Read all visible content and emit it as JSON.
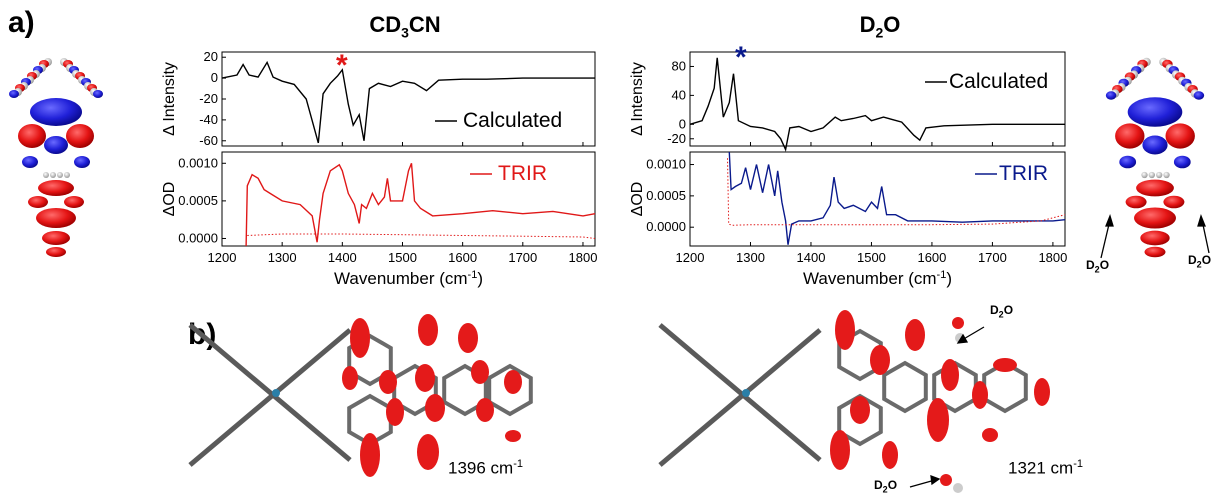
{
  "panel_a_label": "a)",
  "panel_b_label": "b)",
  "left_title_main": "CD",
  "left_title_sub": "3",
  "left_title_tail": "CN",
  "right_title_main": "D",
  "right_title_sub": "2",
  "right_title_tail": "O",
  "left_peak_marker": "*",
  "right_peak_marker": "*",
  "water_label_main": "D",
  "water_label_sub": "2",
  "water_label_tail": "O",
  "freq_left": "1396 cm",
  "freq_left_sup": "-1",
  "freq_right": "1321 cm",
  "freq_right_sup": "-1",
  "colors": {
    "red": "#e01818",
    "navy": "#0a1a8c",
    "black": "#000000"
  },
  "chart_data": [
    {
      "type": "line",
      "panel": "CD3CN calculated",
      "ylabel": "Δ Intensity",
      "yticks": [
        "20",
        "0",
        "-20",
        "-40",
        "-60"
      ],
      "ylim": [
        -65,
        25
      ],
      "xlim": [
        1200,
        1820
      ],
      "series": [
        {
          "name": "Calculated",
          "color": "#000000",
          "x": [
            1200,
            1225,
            1235,
            1245,
            1260,
            1275,
            1285,
            1300,
            1320,
            1340,
            1352,
            1360,
            1368,
            1380,
            1392,
            1400,
            1410,
            1418,
            1428,
            1436,
            1445,
            1460,
            1480,
            1500,
            1520,
            1540,
            1560,
            1600,
            1640,
            1700,
            1820
          ],
          "values": [
            0,
            3,
            13,
            3,
            1,
            15,
            1,
            -3,
            -6,
            -20,
            -45,
            -62,
            -15,
            -5,
            2,
            8,
            -25,
            -45,
            -35,
            -60,
            -10,
            -5,
            -8,
            -3,
            -5,
            -12,
            -2,
            -1,
            -1,
            0,
            0
          ]
        }
      ]
    },
    {
      "type": "line",
      "panel": "CD3CN TRIR",
      "ylabel": "ΔOD",
      "xlabel": "Wavenumber (cm",
      "xlabel_sup": "-1",
      "xlabel_tail": ")",
      "xticks": [
        "1200",
        "1300",
        "1400",
        "1500",
        "1600",
        "1700",
        "1800"
      ],
      "yticks": [
        "0.0010",
        "0.0005",
        "0.0000"
      ],
      "ylim": [
        -0.0001,
        0.00115
      ],
      "xlim": [
        1200,
        1820
      ],
      "series": [
        {
          "name": "TRIR",
          "color": "#e01818",
          "x": [
            1240,
            1242,
            1250,
            1260,
            1270,
            1280,
            1300,
            1330,
            1350,
            1358,
            1362,
            1368,
            1380,
            1395,
            1400,
            1410,
            1420,
            1428,
            1432,
            1440,
            1450,
            1460,
            1470,
            1475,
            1480,
            1500,
            1510,
            1515,
            1520,
            1530,
            1550,
            1600,
            1650,
            1700,
            1750,
            1800,
            1820
          ],
          "values": [
            -0.0001,
            0.0007,
            0.00085,
            0.0008,
            0.00065,
            0.0006,
            0.0005,
            0.00045,
            0.0003,
            -5e-05,
            0.00025,
            0.0006,
            0.0009,
            0.00098,
            0.0009,
            0.0006,
            0.00045,
            0.0002,
            0.00045,
            0.0004,
            0.0006,
            0.00045,
            0.00055,
            0.0008,
            0.0005,
            0.0005,
            0.0009,
            0.001,
            0.0005,
            0.0004,
            0.0003,
            0.00033,
            0.00037,
            0.00033,
            0.00036,
            0.0003,
            0.00033
          ]
        },
        {
          "name": "",
          "color": "#e01818",
          "dashed": true,
          "x": [
            1242,
            1300,
            1400,
            1500,
            1600,
            1700,
            1800,
            1820
          ],
          "values": [
            4e-05,
            6e-05,
            6e-05,
            5e-05,
            4e-05,
            3e-05,
            2e-05,
            0
          ]
        }
      ]
    },
    {
      "type": "line",
      "panel": "D2O calculated",
      "ylabel": "Δ Intensity",
      "yticks": [
        "80",
        "40",
        "0",
        "-20"
      ],
      "ylim": [
        -30,
        100
      ],
      "xlim": [
        1200,
        1820
      ],
      "series": [
        {
          "name": "Calculated",
          "color": "#000000",
          "x": [
            1200,
            1220,
            1230,
            1240,
            1245,
            1255,
            1265,
            1272,
            1280,
            1300,
            1320,
            1340,
            1350,
            1358,
            1365,
            1380,
            1400,
            1420,
            1440,
            1450,
            1470,
            1490,
            1500,
            1520,
            1550,
            1570,
            1580,
            1590,
            1620,
            1700,
            1820
          ],
          "values": [
            0,
            5,
            25,
            50,
            92,
            10,
            30,
            70,
            5,
            -3,
            -5,
            -10,
            -20,
            -35,
            -5,
            -3,
            -10,
            -5,
            10,
            5,
            8,
            12,
            5,
            10,
            3,
            -15,
            -22,
            -5,
            -2,
            0,
            0
          ]
        }
      ]
    },
    {
      "type": "line",
      "panel": "D2O TRIR",
      "ylabel": "ΔOD",
      "xlabel": "Wavenumber (cm",
      "xlabel_sup": "-1",
      "xlabel_tail": ")",
      "xticks": [
        "1200",
        "1300",
        "1400",
        "1500",
        "1600",
        "1700",
        "1800"
      ],
      "yticks": [
        "0.0010",
        "0.0005",
        "0.0000"
      ],
      "ylim": [
        -0.0003,
        0.0012
      ],
      "xlim": [
        1200,
        1820
      ],
      "series": [
        {
          "name": "TRIR",
          "color": "#0a1a8c",
          "x": [
            1265,
            1268,
            1275,
            1285,
            1292,
            1300,
            1310,
            1320,
            1330,
            1340,
            1345,
            1352,
            1358,
            1362,
            1368,
            1380,
            1400,
            1420,
            1432,
            1438,
            1445,
            1455,
            1470,
            1490,
            1500,
            1510,
            1517,
            1525,
            1540,
            1560,
            1600,
            1650,
            1700,
            1750,
            1800,
            1820
          ],
          "values": [
            0.0012,
            0.0006,
            0.00065,
            0.0007,
            0.00095,
            0.0006,
            0.001,
            0.00055,
            0.001,
            0.0005,
            0.0009,
            0.0004,
            0.0001,
            -0.00028,
            5e-05,
            0.0001,
            0.0001,
            0.00015,
            0.00035,
            0.0008,
            0.0004,
            0.0003,
            0.00035,
            0.00025,
            0.0004,
            0.0003,
            0.00065,
            0.0002,
            0.0002,
            0.0001,
            0.0001,
            8e-05,
            0.0001,
            0.0001,
            0.0001,
            0.00012
          ]
        },
        {
          "name": "",
          "color": "#e01818",
          "dashed": true,
          "x": [
            1262,
            1264,
            1270,
            1300,
            1400,
            1500,
            1600,
            1700,
            1780,
            1800,
            1820
          ],
          "values": [
            0.0011,
            5e-05,
            3e-05,
            4e-05,
            4e-05,
            4e-05,
            4e-05,
            5e-05,
            0.0001,
            0.00015,
            0.0002
          ]
        }
      ]
    }
  ]
}
